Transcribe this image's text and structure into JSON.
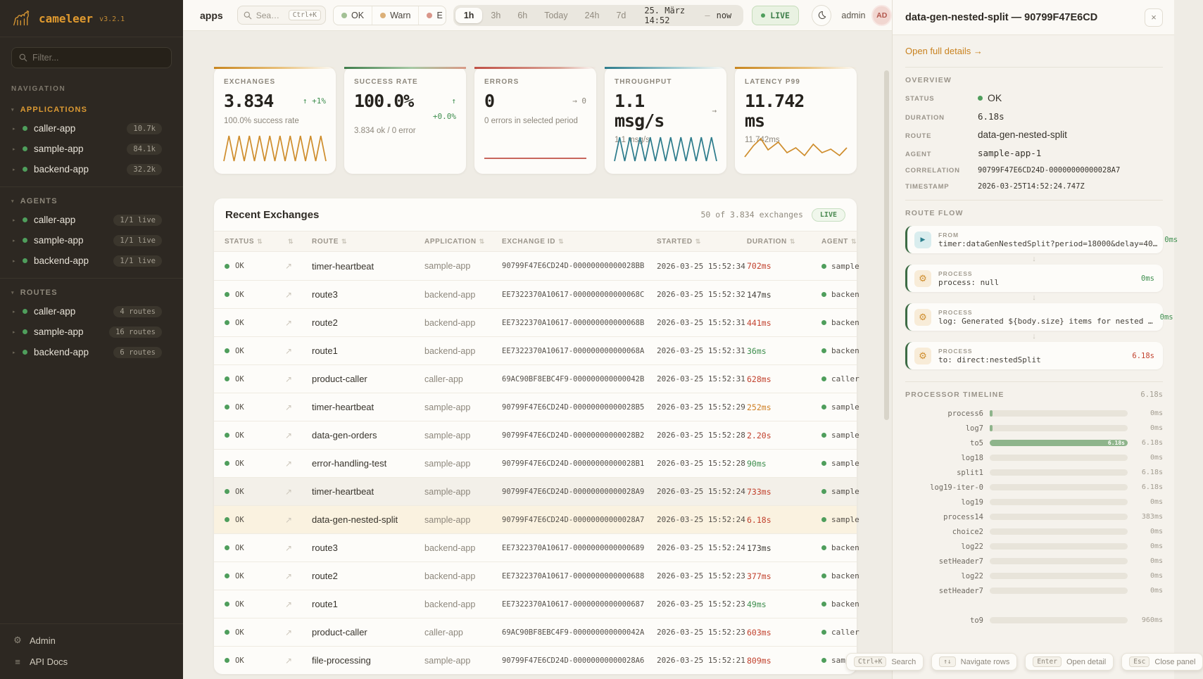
{
  "colors": {
    "accent_orange": "#dc9a33",
    "green": "#3e8e4e",
    "red": "#c2422e",
    "orange": "#cf7f24",
    "teal": "#2d7c8c",
    "sidebar_bg": "#2d2822"
  },
  "sidebar": {
    "logo_text": "cameleer",
    "version": "v3.2.1",
    "filter_placeholder": "Filter...",
    "nav_label": "NAVIGATION",
    "sections": [
      {
        "label": "APPLICATIONS",
        "items": [
          {
            "name": "caller-app",
            "badge": "10.7k"
          },
          {
            "name": "sample-app",
            "badge": "84.1k"
          },
          {
            "name": "backend-app",
            "badge": "32.2k"
          }
        ]
      },
      {
        "label": "AGENTS",
        "items": [
          {
            "name": "caller-app",
            "badge": "1/1 live"
          },
          {
            "name": "sample-app",
            "badge": "1/1 live"
          },
          {
            "name": "backend-app",
            "badge": "1/1 live"
          }
        ]
      },
      {
        "label": "ROUTES",
        "items": [
          {
            "name": "caller-app",
            "badge": "4 routes"
          },
          {
            "name": "sample-app",
            "badge": "16 routes"
          },
          {
            "name": "backend-app",
            "badge": "6 routes"
          }
        ]
      }
    ],
    "footer": [
      {
        "label": "Admin"
      },
      {
        "label": "API Docs"
      }
    ]
  },
  "topbar": {
    "context": "apps",
    "search_placeholder": "Sea…",
    "search_shortcut": "Ctrl+K",
    "status_filters": [
      {
        "label": "OK"
      },
      {
        "label": "Warn"
      },
      {
        "label": "E"
      }
    ],
    "ranges": [
      "1h",
      "3h",
      "6h",
      "Today",
      "24h",
      "7d"
    ],
    "active_range": "1h",
    "range_from": "25. März 14:52",
    "range_sep": "—",
    "range_to": "now",
    "live_label": "LIVE",
    "user": "admin",
    "avatar_initials": "AD"
  },
  "kpis": [
    {
      "label": "EXCHANGES",
      "value": "3.834",
      "delta": "↑ +1%",
      "sub": "100.0% success rate"
    },
    {
      "label": "SUCCESS RATE",
      "value": "100.0%",
      "delta": "↑",
      "delta2": "+0.0%",
      "sub": "3.834 ok / 0 error"
    },
    {
      "label": "ERRORS",
      "value": "0",
      "delta": "→ 0",
      "sub": "0 errors in selected period"
    },
    {
      "label": "THROUGHPUT",
      "value": "1.1 msg/s",
      "delta": "→",
      "sub": "1.1 msg/s"
    },
    {
      "label": "LATENCY P99",
      "value": "11.742 ms",
      "sub": "11.742ms"
    }
  ],
  "table": {
    "title": "Recent Exchanges",
    "count_text": "50 of 3.834 exchanges",
    "live_badge": "LIVE",
    "columns": [
      "STATUS",
      "",
      "ROUTE",
      "APPLICATION",
      "EXCHANGE ID",
      "STARTED",
      "DURATION",
      "AGENT"
    ],
    "rows": [
      {
        "status": "OK",
        "route": "timer-heartbeat",
        "app": "sample-app",
        "id": "90799F47E6CD24D-00000000000028BB",
        "started": "2026-03-25 15:52:34",
        "duration": "702ms",
        "tone": "red",
        "agent": "sample"
      },
      {
        "status": "OK",
        "route": "route3",
        "app": "backend-app",
        "id": "EE7322370A10617-000000000000068C",
        "started": "2026-03-25 15:52:32",
        "duration": "147ms",
        "tone": "default",
        "agent": "backen"
      },
      {
        "status": "OK",
        "route": "route2",
        "app": "backend-app",
        "id": "EE7322370A10617-000000000000068B",
        "started": "2026-03-25 15:52:31",
        "duration": "441ms",
        "tone": "red",
        "agent": "backen"
      },
      {
        "status": "OK",
        "route": "route1",
        "app": "backend-app",
        "id": "EE7322370A10617-000000000000068A",
        "started": "2026-03-25 15:52:31",
        "duration": "36ms",
        "tone": "green",
        "agent": "backen"
      },
      {
        "status": "OK",
        "route": "product-caller",
        "app": "caller-app",
        "id": "69AC90BF8EBC4F9-000000000000042B",
        "started": "2026-03-25 15:52:31",
        "duration": "628ms",
        "tone": "red",
        "agent": "caller"
      },
      {
        "status": "OK",
        "route": "timer-heartbeat",
        "app": "sample-app",
        "id": "90799F47E6CD24D-00000000000028B5",
        "started": "2026-03-25 15:52:29",
        "duration": "252ms",
        "tone": "orange",
        "agent": "sample"
      },
      {
        "status": "OK",
        "route": "data-gen-orders",
        "app": "sample-app",
        "id": "90799F47E6CD24D-00000000000028B2",
        "started": "2026-03-25 15:52:28",
        "duration": "2.20s",
        "tone": "red",
        "agent": "sample"
      },
      {
        "status": "OK",
        "route": "error-handling-test",
        "app": "sample-app",
        "id": "90799F47E6CD24D-00000000000028B1",
        "started": "2026-03-25 15:52:28",
        "duration": "90ms",
        "tone": "green",
        "agent": "sample"
      },
      {
        "status": "OK",
        "route": "timer-heartbeat",
        "app": "sample-app",
        "id": "90799F47E6CD24D-00000000000028A9",
        "started": "2026-03-25 15:52:24",
        "duration": "733ms",
        "tone": "red",
        "agent": "sample",
        "state": "hover"
      },
      {
        "status": "OK",
        "route": "data-gen-nested-split",
        "app": "sample-app",
        "id": "90799F47E6CD24D-00000000000028A7",
        "started": "2026-03-25 15:52:24",
        "duration": "6.18s",
        "tone": "red",
        "agent": "sample",
        "state": "selected"
      },
      {
        "status": "OK",
        "route": "route3",
        "app": "backend-app",
        "id": "EE7322370A10617-0000000000000689",
        "started": "2026-03-25 15:52:24",
        "duration": "173ms",
        "tone": "default",
        "agent": "backen"
      },
      {
        "status": "OK",
        "route": "route2",
        "app": "backend-app",
        "id": "EE7322370A10617-0000000000000688",
        "started": "2026-03-25 15:52:23",
        "duration": "377ms",
        "tone": "red",
        "agent": "backen"
      },
      {
        "status": "OK",
        "route": "route1",
        "app": "backend-app",
        "id": "EE7322370A10617-0000000000000687",
        "started": "2026-03-25 15:52:23",
        "duration": "49ms",
        "tone": "green",
        "agent": "backen"
      },
      {
        "status": "OK",
        "route": "product-caller",
        "app": "caller-app",
        "id": "69AC90BF8EBC4F9-000000000000042A",
        "started": "2026-03-25 15:52:23",
        "duration": "603ms",
        "tone": "red",
        "agent": "caller"
      },
      {
        "status": "OK",
        "route": "file-processing",
        "app": "sample-app",
        "id": "90799F47E6CD24D-00000000000028A6",
        "started": "2026-03-25 15:52:21",
        "duration": "809ms",
        "tone": "red",
        "agent": "sample"
      }
    ]
  },
  "panel": {
    "title": "data-gen-nested-split — 90799F47E6CD",
    "close_label": "×",
    "details_link": "Open full details →",
    "overview_label": "OVERVIEW",
    "overview": [
      {
        "label": "STATUS",
        "value": "OK"
      },
      {
        "label": "DURATION",
        "value": "6.18s"
      },
      {
        "label": "ROUTE",
        "value": "data-gen-nested-split"
      },
      {
        "label": "AGENT",
        "value": "sample-app-1"
      },
      {
        "label": "CORRELATION",
        "value": "90799F47E6CD24D-00000000000028A7"
      },
      {
        "label": "TIMESTAMP",
        "value": "2026-03-25T14:52:24.747Z"
      }
    ],
    "route_flow_label": "ROUTE FLOW",
    "route_flow": [
      {
        "kind": "FROM",
        "text": "timer:dataGenNestedSplit?period=18000&delay=40…",
        "duration": "0ms",
        "tone": "green"
      },
      {
        "kind": "PROCESS",
        "text": "process: null",
        "duration": "0ms",
        "tone": "green"
      },
      {
        "kind": "PROCESS",
        "text": "log: Generated ${body.size} items for nested …",
        "duration": "0ms",
        "tone": "green"
      },
      {
        "kind": "PROCESS",
        "text": "to: direct:nestedSplit",
        "duration": "6.18s",
        "tone": "red"
      }
    ],
    "timeline_label": "PROCESSOR TIMELINE",
    "timeline_total": "6.18s",
    "timeline": [
      {
        "name": "process6",
        "value": "0ms",
        "bar_pct": 2,
        "bar_label": ""
      },
      {
        "name": "log7",
        "value": "0ms",
        "bar_pct": 2,
        "bar_label": ""
      },
      {
        "name": "to5",
        "value": "6.18s",
        "bar_pct": 100,
        "bar_label": "6.18s"
      },
      {
        "name": "log18",
        "value": "0ms",
        "bar_pct": 0,
        "bar_label": ""
      },
      {
        "name": "split1",
        "value": "6.18s",
        "bar_pct": 0,
        "bar_label": ""
      },
      {
        "name": "log19-iter-0",
        "value": "6.18s",
        "bar_pct": 0,
        "bar_label": ""
      },
      {
        "name": "log19",
        "value": "0ms",
        "bar_pct": 0,
        "bar_label": ""
      },
      {
        "name": "process14",
        "value": "383ms",
        "bar_pct": 0,
        "bar_label": ""
      },
      {
        "name": "choice2",
        "value": "0ms",
        "bar_pct": 0,
        "bar_label": ""
      },
      {
        "name": "log22",
        "value": "0ms",
        "bar_pct": 0,
        "bar_label": ""
      },
      {
        "name": "setHeader7",
        "value": "0ms",
        "bar_pct": 0,
        "bar_label": ""
      },
      {
        "name": "log22",
        "value": "0ms",
        "bar_pct": 0,
        "bar_label": ""
      },
      {
        "name": "setHeader7",
        "value": "0ms",
        "bar_pct": 0,
        "bar_label": ""
      },
      {
        "name": "to9",
        "value": "960ms",
        "bar_pct": 0,
        "bar_label": ""
      }
    ]
  },
  "hints": [
    {
      "key": "Ctrl+K",
      "label": "Search"
    },
    {
      "key": "↑↓",
      "label": "Navigate rows"
    },
    {
      "key": "Enter",
      "label": "Open detail"
    },
    {
      "key": "Esc",
      "label": "Close panel"
    }
  ]
}
